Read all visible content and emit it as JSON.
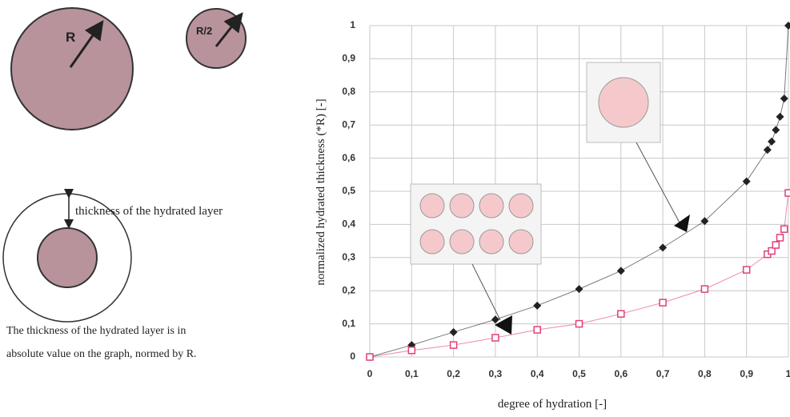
{
  "diagram": {
    "big_label": "R",
    "small_label": "R/2",
    "layer_label": "thickness of the hydrated layer",
    "caption": [
      "The thickness of the hydrated layer is in",
      "absolute value on the graph, normed by R."
    ]
  },
  "chart_data": {
    "type": "scatter",
    "xlabel": "degree of hydration [-]",
    "ylabel": "normalized hydrated thickness (*R) [-]",
    "x": [
      0,
      0.1,
      0.2,
      0.3,
      0.4,
      0.5,
      0.6,
      0.7,
      0.8,
      0.9,
      0.95,
      0.96,
      0.97,
      0.98,
      0.99,
      1
    ],
    "series": [
      {
        "color": "#222222",
        "marker": "diamond",
        "values": [
          0,
          0.036,
          0.075,
          0.113,
          0.155,
          0.205,
          0.26,
          0.33,
          0.41,
          0.53,
          0.625,
          0.65,
          0.685,
          0.725,
          0.78,
          1.0
        ]
      },
      {
        "color": "#e0407a",
        "marker": "square",
        "values": [
          0,
          0.02,
          0.036,
          0.058,
          0.082,
          0.1,
          0.13,
          0.164,
          0.205,
          0.263,
          0.31,
          0.32,
          0.338,
          0.36,
          0.386,
          0.495
        ]
      }
    ],
    "xlim": [
      0,
      1
    ],
    "ylim": [
      0,
      1
    ],
    "xticks": [
      0,
      {
        "value": 0.1,
        "label": "0,1"
      },
      {
        "value": 0.2,
        "label": "0,2"
      },
      {
        "value": 0.3,
        "label": "0,3"
      },
      {
        "value": 0.4,
        "label": "0,4"
      },
      {
        "value": 0.5,
        "label": "0,5"
      },
      {
        "value": 0.6,
        "label": "0,6"
      },
      {
        "value": 0.7,
        "label": "0,7"
      },
      {
        "value": 0.8,
        "label": "0,8"
      },
      {
        "value": 0.9,
        "label": "0,9"
      },
      1
    ],
    "yticks": [
      0,
      {
        "value": 0.1,
        "label": "0,1"
      },
      {
        "value": 0.2,
        "label": "0,2"
      },
      {
        "value": 0.3,
        "label": "0,3"
      },
      {
        "value": 0.4,
        "label": "0,4"
      },
      {
        "value": 0.5,
        "label": "0,5"
      },
      {
        "value": 0.6,
        "label": "0,6"
      },
      {
        "value": 0.7,
        "label": "0,7"
      },
      {
        "value": 0.8,
        "label": "0,8"
      },
      {
        "value": 0.9,
        "label": "0,9"
      },
      1
    ],
    "grid": true
  }
}
